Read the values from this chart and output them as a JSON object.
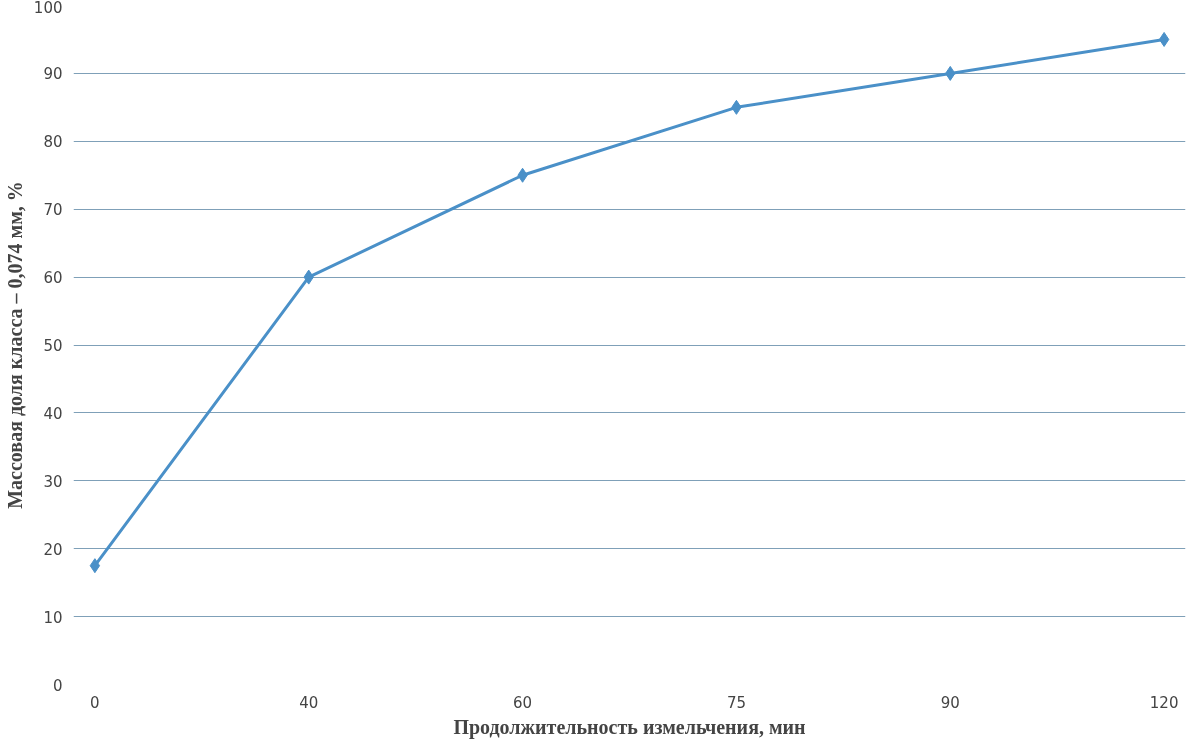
{
  "chart_data": {
    "type": "line",
    "xlabel": "Продолжительность измельчения, мин",
    "ylabel": "Массовая доля класса – 0,074 мм, %",
    "categories": [
      "0",
      "40",
      "60",
      "75",
      "90",
      "120"
    ],
    "series": [
      {
        "color": "#4a90c8",
        "values": [
          17.5,
          60,
          75,
          85,
          90,
          95
        ]
      }
    ],
    "ylim": [
      0,
      100
    ],
    "yticks": [
      0,
      10,
      20,
      30,
      40,
      50,
      60,
      70,
      80,
      90,
      100
    ],
    "grid": "y",
    "marker": "diamond",
    "line_style": "solid"
  }
}
